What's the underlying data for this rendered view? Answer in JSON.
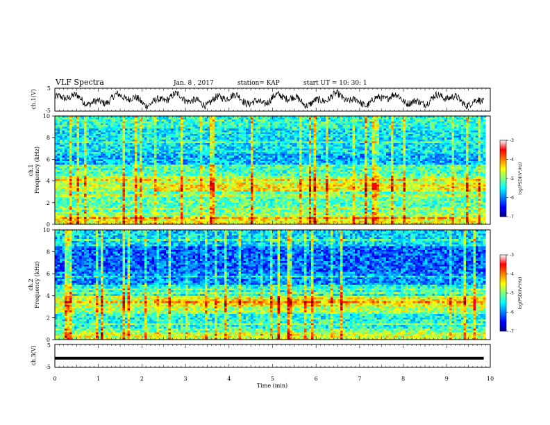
{
  "header": {
    "title": "VLF Spectra",
    "date": "Jan. 8 , 2017",
    "station": "station= KAP",
    "start": "start  UT =   10: 30: 1"
  },
  "chart_data": [
    {
      "type": "line",
      "name": "ch1-waveform",
      "ylabel": "ch.1(V)",
      "ylim": [
        -5,
        5
      ],
      "yticks": [
        "5",
        "-5"
      ],
      "xlim": [
        0,
        10
      ]
    },
    {
      "type": "heatmap",
      "name": "ch1-spectrogram",
      "ylabel_top": "ch.1",
      "ylabel": "Frequency (kHz)",
      "ylim": [
        0,
        10
      ],
      "yticks": [
        "0",
        "2",
        "4",
        "6",
        "8",
        "10"
      ],
      "xlim": [
        0,
        10
      ],
      "colorbar": {
        "label": "log(PSD)(V²/Hz)",
        "ticks": [
          "-3",
          "-4",
          "-5",
          "-6",
          "-7"
        ],
        "range": [
          -7,
          -3
        ]
      }
    },
    {
      "type": "heatmap",
      "name": "ch2-spectrogram",
      "ylabel_top": "ch.2",
      "ylabel": "Frequency (kHz)",
      "ylim": [
        0,
        10
      ],
      "yticks": [
        "0",
        "2",
        "4",
        "6",
        "8",
        "10"
      ],
      "xlim": [
        0,
        10
      ],
      "colorbar": {
        "label": "log(PSD)(V²/Hz)",
        "ticks": [
          "-3",
          "-4",
          "-5",
          "-6",
          "-7"
        ],
        "range": [
          -7,
          -3
        ]
      }
    },
    {
      "type": "line",
      "name": "ch3-waveform",
      "ylabel": "ch.3(V)",
      "ylim": [
        -5,
        5
      ],
      "yticks": [
        "5",
        "-5"
      ],
      "xlim": [
        0,
        10
      ],
      "value_constant": -1
    }
  ],
  "xaxis": {
    "label": "Time  (min)",
    "ticks": [
      "0",
      "1",
      "2",
      "3",
      "4",
      "5",
      "6",
      "7",
      "8",
      "9",
      "10"
    ]
  }
}
